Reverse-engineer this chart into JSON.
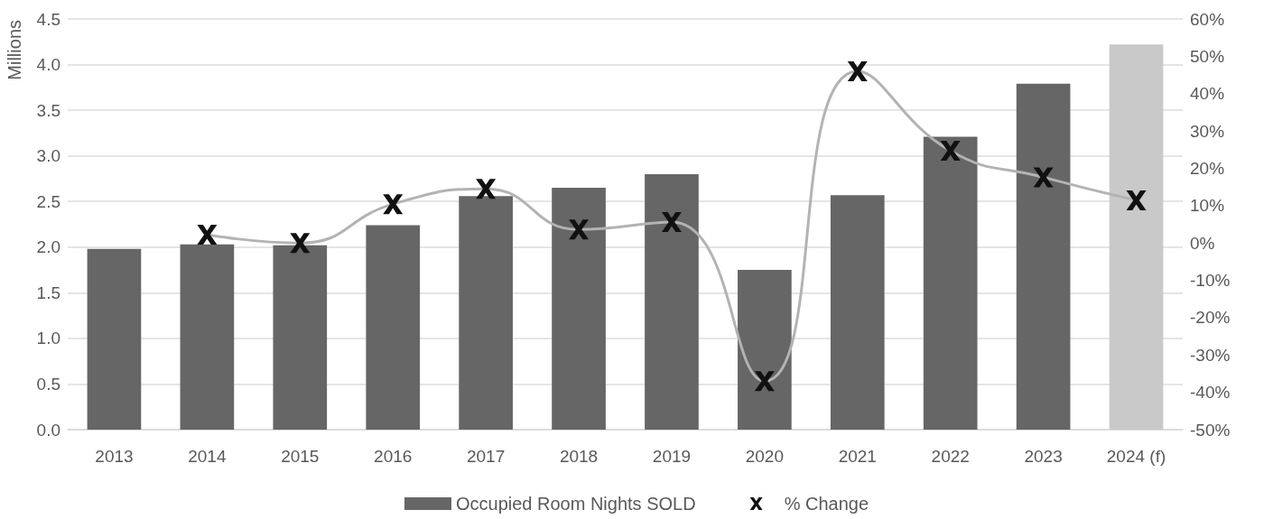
{
  "chart_data": {
    "type": "bar",
    "ylabel": "Millions",
    "categories": [
      "2013",
      "2014",
      "2015",
      "2016",
      "2017",
      "2018",
      "2019",
      "2020",
      "2021",
      "2022",
      "2023",
      "2024 (f)"
    ],
    "series": [
      {
        "name": "Occupied Room Nights SOLD",
        "color": "#666666",
        "colors": [
          "#666666",
          "#666666",
          "#666666",
          "#666666",
          "#666666",
          "#666666",
          "#666666",
          "#666666",
          "#666666",
          "#666666",
          "#666666",
          "#c9c9ca"
        ],
        "values": [
          1.98,
          2.03,
          2.02,
          2.24,
          2.56,
          2.65,
          2.8,
          1.75,
          2.57,
          3.21,
          3.79,
          4.22
        ]
      },
      {
        "name": "% Change",
        "type": "line",
        "axis": "y2",
        "color": "#b3b3b3",
        "marker": "cross",
        "values": [
          null,
          2.2,
          0,
          10.4,
          14.5,
          3.6,
          5.6,
          -37,
          46,
          24.7,
          17.6,
          11.4
        ]
      }
    ],
    "ylim": [
      0,
      4.5
    ],
    "yticks": [
      {
        "value": 0,
        "label": "0.0"
      },
      {
        "value": 0.5,
        "label": "0.5"
      },
      {
        "value": 1,
        "label": "1.0"
      },
      {
        "value": 1.5,
        "label": "1.5"
      },
      {
        "value": 2,
        "label": "2.0"
      },
      {
        "value": 2.5,
        "label": "2.5"
      },
      {
        "value": 3,
        "label": "3.0"
      },
      {
        "value": 3.5,
        "label": "3.5"
      },
      {
        "value": 4,
        "label": "4.0"
      },
      {
        "value": 4.5,
        "label": "4.5"
      }
    ],
    "y2lim": [
      -50,
      60
    ],
    "y2ticks": [
      {
        "value": -50,
        "label": "-50%"
      },
      {
        "value": -40,
        "label": "-40%"
      },
      {
        "value": -30,
        "label": "-30%"
      },
      {
        "value": -20,
        "label": "-20%"
      },
      {
        "value": -10,
        "label": "-10%"
      },
      {
        "value": 0,
        "label": "0%"
      },
      {
        "value": 10,
        "label": "10%"
      },
      {
        "value": 20,
        "label": "20%"
      },
      {
        "value": 30,
        "label": "30%"
      },
      {
        "value": 40,
        "label": "40%"
      },
      {
        "value": 50,
        "label": "50%"
      },
      {
        "value": 60,
        "label": "60%"
      }
    ],
    "grid": "y",
    "legend": "bottom"
  }
}
